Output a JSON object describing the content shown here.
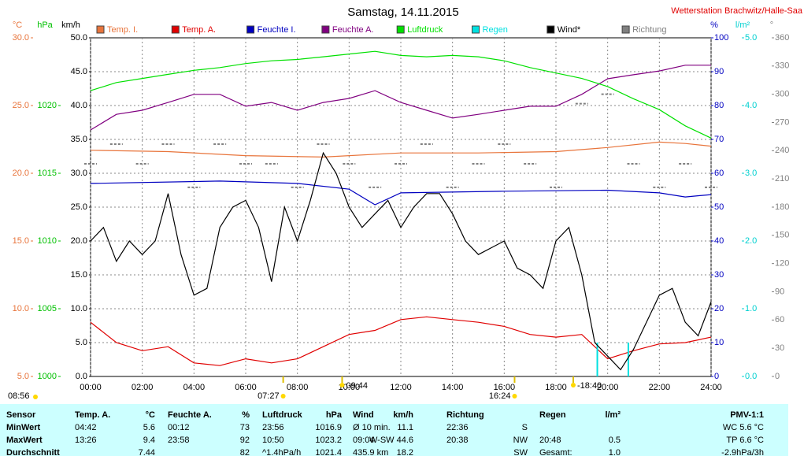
{
  "chart_data": {
    "type": "line",
    "title": "Samstag, 14.11.2015",
    "source": "Wetterstation Brachwitz/Halle-Saa",
    "xlim": [
      0,
      24
    ],
    "xticks": [
      {
        "value": 0,
        "label": "00:00"
      },
      {
        "value": 2,
        "label": "02:00"
      },
      {
        "value": 4,
        "label": "04:00"
      },
      {
        "value": 6,
        "label": "06:00"
      },
      {
        "value": 8,
        "label": "08:00"
      },
      {
        "value": 10,
        "label": "10:00"
      },
      {
        "value": 12,
        "label": "12:00"
      },
      {
        "value": 14,
        "label": "14:00"
      },
      {
        "value": 16,
        "label": "16:00"
      },
      {
        "value": 18,
        "label": "18:00"
      },
      {
        "value": 20,
        "label": "20:00"
      },
      {
        "value": 22,
        "label": "22:00"
      },
      {
        "value": 24,
        "label": "24:00"
      }
    ],
    "grid": true,
    "axes": [
      {
        "id": "temp",
        "unit": "°C",
        "color": "#e8743b",
        "side": "left",
        "ylim": [
          5,
          30
        ],
        "yticks": [
          {
            "value": 5,
            "label": "5.0"
          },
          {
            "value": 10,
            "label": "10.0"
          },
          {
            "value": 15,
            "label": "15.0"
          },
          {
            "value": 20,
            "label": "20.0"
          },
          {
            "value": 25,
            "label": "25.0"
          },
          {
            "value": 30,
            "label": "30.0"
          }
        ]
      },
      {
        "id": "press",
        "unit": "hPa",
        "color": "#00c000",
        "side": "left",
        "ylim": [
          1000,
          1025
        ],
        "yticks": [
          1000,
          1005,
          1010,
          1015,
          1020
        ]
      },
      {
        "id": "wind",
        "unit": "km/h",
        "color": "#000000",
        "side": "left",
        "ylim": [
          0,
          50
        ],
        "yticks": [
          {
            "value": 0,
            "label": "0.0"
          },
          {
            "value": 5,
            "label": "5.0"
          },
          {
            "value": 10,
            "label": "10.0"
          },
          {
            "value": 15,
            "label": "15.0"
          },
          {
            "value": 20,
            "label": "20.0"
          },
          {
            "value": 25,
            "label": "25.0"
          },
          {
            "value": 30,
            "label": "30.0"
          },
          {
            "value": 35,
            "label": "35.0"
          },
          {
            "value": 40,
            "label": "40.0"
          },
          {
            "value": 45,
            "label": "45.0"
          },
          {
            "value": 50,
            "label": "50.0"
          }
        ]
      },
      {
        "id": "hum",
        "unit": "%",
        "color": "#0000c0",
        "side": "right",
        "ylim": [
          0,
          100
        ],
        "yticks": [
          0,
          10,
          20,
          30,
          40,
          50,
          60,
          70,
          80,
          90,
          100
        ]
      },
      {
        "id": "rain",
        "unit": "l/m²",
        "color": "#00d0d0",
        "side": "right",
        "ylim": [
          0,
          5
        ],
        "yticks": [
          {
            "value": 0,
            "label": "0.0"
          },
          {
            "value": 1,
            "label": "1.0"
          },
          {
            "value": 2,
            "label": "2.0"
          },
          {
            "value": 3,
            "label": "3.0"
          },
          {
            "value": 4,
            "label": "4.0"
          },
          {
            "value": 5,
            "label": "5.0"
          }
        ]
      },
      {
        "id": "dir",
        "unit": "°",
        "color": "#808080",
        "side": "right",
        "ylim": [
          0,
          360
        ],
        "yticks": [
          0,
          30,
          60,
          90,
          120,
          150,
          180,
          210,
          240,
          270,
          300,
          330,
          360
        ]
      }
    ],
    "series": [
      {
        "name": "Temp. I.",
        "color": "#e8743b",
        "axis": "temp",
        "render": "line",
        "x": [
          0,
          3,
          6,
          9,
          12,
          15,
          18,
          20,
          22,
          23,
          24
        ],
        "values": [
          21.7,
          21.6,
          21.3,
          21.2,
          21.5,
          21.5,
          21.6,
          21.9,
          22.3,
          22.2,
          22.0
        ]
      },
      {
        "name": "Temp. A.",
        "color": "#e00000",
        "axis": "temp",
        "render": "line",
        "x": [
          0,
          1,
          2,
          3,
          4,
          5,
          6,
          7,
          8,
          9,
          10,
          11,
          12,
          13,
          14,
          15,
          16,
          17,
          18,
          19,
          20,
          21,
          22,
          23,
          24
        ],
        "values": [
          9.0,
          7.5,
          6.9,
          7.2,
          6.0,
          5.8,
          6.3,
          6.0,
          6.3,
          7.2,
          8.1,
          8.4,
          9.2,
          9.4,
          9.2,
          9.0,
          8.7,
          8.1,
          7.9,
          8.1,
          6.3,
          6.9,
          7.4,
          7.5,
          7.9
        ]
      },
      {
        "name": "Feuchte I.",
        "color": "#0000c0",
        "axis": "hum",
        "render": "line",
        "x": [
          0,
          5,
          8,
          10,
          11,
          12,
          16,
          20,
          22,
          23,
          24
        ],
        "values": [
          57.0,
          57.7,
          57.0,
          55.3,
          50.7,
          54.2,
          54.7,
          55.0,
          54.2,
          53.0,
          53.7
        ]
      },
      {
        "name": "Feuchte A.",
        "color": "#800080",
        "axis": "hum",
        "render": "line",
        "x": [
          0,
          1,
          2,
          3,
          4,
          5,
          6,
          7,
          8,
          9,
          10,
          11,
          12,
          13,
          14,
          15,
          16,
          17,
          18,
          19,
          20,
          21,
          22,
          23,
          24
        ],
        "values": [
          72.8,
          77.4,
          78.6,
          80.9,
          83.3,
          83.3,
          79.8,
          80.9,
          78.6,
          80.9,
          82.1,
          84.4,
          80.9,
          78.6,
          76.3,
          77.4,
          78.6,
          79.8,
          79.8,
          83.3,
          87.9,
          89.1,
          90.2,
          91.9,
          91.9
        ]
      },
      {
        "name": "Luftdruck",
        "color": "#00e000",
        "axis": "press",
        "render": "line",
        "x": [
          0,
          1,
          2,
          3,
          4,
          5,
          6,
          7,
          8,
          9,
          10,
          11,
          12,
          13,
          14,
          15,
          16,
          17,
          18,
          19,
          20,
          21,
          22,
          23,
          24
        ],
        "values": [
          1021.1,
          1021.7,
          1022.0,
          1022.3,
          1022.6,
          1022.8,
          1023.1,
          1023.3,
          1023.4,
          1023.6,
          1023.8,
          1024.0,
          1023.7,
          1023.6,
          1023.7,
          1023.6,
          1023.3,
          1022.8,
          1022.4,
          1022.0,
          1021.4,
          1020.5,
          1019.7,
          1018.5,
          1017.6
        ]
      },
      {
        "name": "Regen",
        "color": "#00e0e0",
        "axis": "rain",
        "render": "bars",
        "x": [
          19.6,
          20.8
        ],
        "values": [
          0.5,
          0.5
        ]
      },
      {
        "name": "Wind*",
        "color": "#000000",
        "axis": "wind",
        "render": "line",
        "x": [
          0,
          0.5,
          1,
          1.5,
          2,
          2.5,
          3,
          3.5,
          4,
          4.5,
          5,
          5.5,
          6,
          6.5,
          7,
          7.5,
          8,
          8.5,
          9,
          9.5,
          10,
          10.5,
          11,
          11.5,
          12,
          12.5,
          13,
          13.5,
          14,
          14.5,
          15,
          15.5,
          16,
          16.5,
          17,
          17.5,
          18,
          18.5,
          19,
          19.5,
          20,
          20.5,
          21,
          21.5,
          22,
          22.5,
          23,
          23.5,
          24
        ],
        "values": [
          20,
          22,
          17,
          20,
          18,
          20,
          27,
          18,
          12,
          13,
          22,
          25,
          26,
          22,
          14,
          25,
          20,
          26,
          33,
          30,
          25,
          22,
          24,
          26,
          22,
          25,
          27,
          27,
          24,
          20,
          18,
          19,
          20,
          16,
          15,
          13,
          20,
          22,
          15,
          5,
          3,
          1,
          4,
          8,
          12,
          13,
          8,
          6,
          11
        ]
      },
      {
        "name": "Richtung",
        "color": "#808080",
        "axis": "dir",
        "render": "dashes",
        "x": [
          0,
          1,
          2,
          3,
          4,
          5,
          6,
          7,
          8,
          9,
          10,
          11,
          12,
          13,
          14,
          15,
          16,
          17,
          18,
          19,
          20,
          21,
          22,
          23,
          24
        ],
        "values": [
          226,
          247,
          226,
          247,
          201,
          247,
          226,
          226,
          201,
          247,
          226,
          201,
          226,
          247,
          201,
          226,
          247,
          226,
          201,
          290,
          300,
          226,
          201,
          226,
          201
        ]
      }
    ],
    "markers": [
      {
        "label": "08:56"
      },
      {
        "value": 7.45,
        "label": "07:27"
      },
      {
        "value": 9.73,
        "label": "09:44"
      },
      {
        "value": 16.4,
        "label": "16:24"
      },
      {
        "value": 18.67,
        "label": "-18:40"
      }
    ]
  },
  "table": {
    "rows": [
      [
        "Sensor",
        "Temp. A.",
        "°C",
        "Feuchte A.",
        "%",
        "Luftdruck",
        "hPa",
        "Wind",
        "km/h",
        "Richtung",
        null,
        "Regen",
        "l/m²",
        "PMV-1:1"
      ],
      [
        "MinWert",
        "04:42",
        "5.6",
        "00:12",
        "73",
        "23:56",
        "1016.9",
        "Ø 10 min.",
        "11.1",
        "22:36",
        "S",
        null,
        null,
        "WC 5.6 °C"
      ],
      [
        "MaxWert",
        "13:26",
        "9.4",
        "23:58",
        "92",
        "10:50",
        "1023.2",
        "09:04",
        "W-SW 44.6",
        "20:38",
        "NW",
        "20:48",
        "0.5",
        "TP 6.6 °C"
      ],
      [
        "Durchschnitt",
        null,
        "7.44",
        null,
        "82",
        "^1.4hPa/h",
        "1021.4",
        "435.9 km",
        "18.2",
        null,
        "SW",
        "Gesamt:",
        "1.0",
        "-2.9hPa/3h"
      ]
    ]
  }
}
